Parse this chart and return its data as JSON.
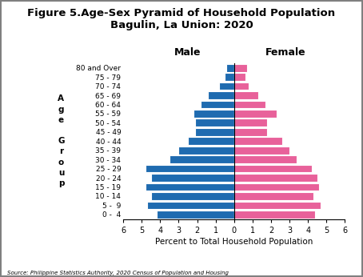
{
  "title_line1": "Figure 5.Age-Sex Pyramid of Household Population",
  "title_line2": "Bagulin, La Union: 2020",
  "age_groups": [
    "0 -  4",
    "5 -  9",
    "10 - 14",
    "15 - 19",
    "20 - 24",
    "25 - 29",
    "30 - 34",
    "35 - 39",
    "40 - 44",
    "45 - 49",
    "50 - 54",
    "55 - 59",
    "60 - 64",
    "65 - 69",
    "70 - 74",
    "75 - 79",
    "80 and Over"
  ],
  "male": [
    4.2,
    4.7,
    4.5,
    4.8,
    4.5,
    4.8,
    3.5,
    3.0,
    2.5,
    2.1,
    2.1,
    2.2,
    1.8,
    1.4,
    0.8,
    0.5,
    0.4
  ],
  "female": [
    4.4,
    4.7,
    4.3,
    4.6,
    4.5,
    4.2,
    3.4,
    3.0,
    2.6,
    1.8,
    1.8,
    2.3,
    1.7,
    1.3,
    0.8,
    0.6,
    0.7
  ],
  "male_color": "#1F6BB0",
  "female_color": "#E8619A",
  "xlabel": "Percent to Total Household Population",
  "xlim": 6,
  "source": "Source: Philippine Statistics Authority, 2020 Census of Population and Housing",
  "male_label": "Male",
  "female_label": "Female",
  "title_fontsize": 9.5,
  "bar_edge_color": "white",
  "ylabel_stacked": "A\ng\ne\n\nG\nr\no\nu\np"
}
